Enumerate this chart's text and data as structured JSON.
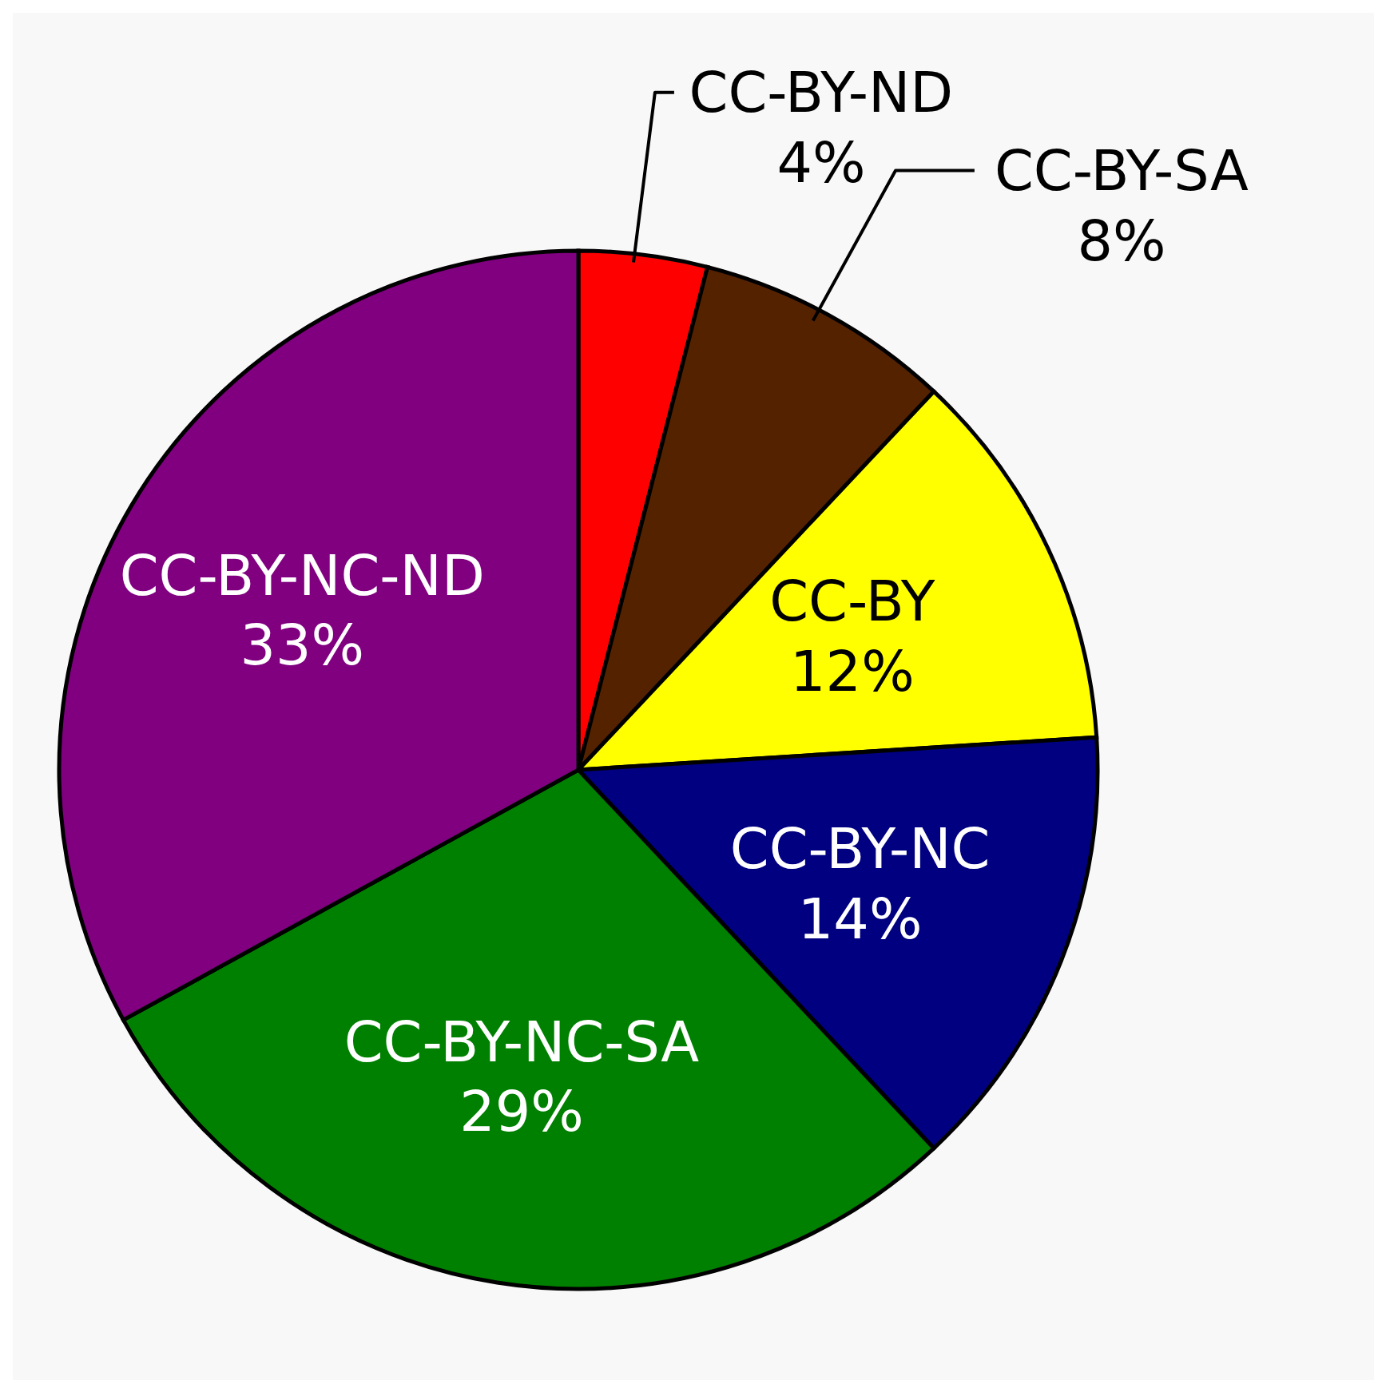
{
  "chart_data": {
    "type": "pie",
    "categories": [
      "CC-BY-ND",
      "CC-BY-SA",
      "CC-BY",
      "CC-BY-NC",
      "CC-BY-NC-SA",
      "CC-BY-NC-ND"
    ],
    "values": [
      4,
      8,
      12,
      14,
      29,
      33
    ],
    "value_labels": [
      "4%",
      "8%",
      "12%",
      "14%",
      "29%",
      "33%"
    ],
    "colors": [
      "#ff0000",
      "#552200",
      "#ffff00",
      "#000080",
      "#008000",
      "#800080"
    ],
    "legend": false
  }
}
